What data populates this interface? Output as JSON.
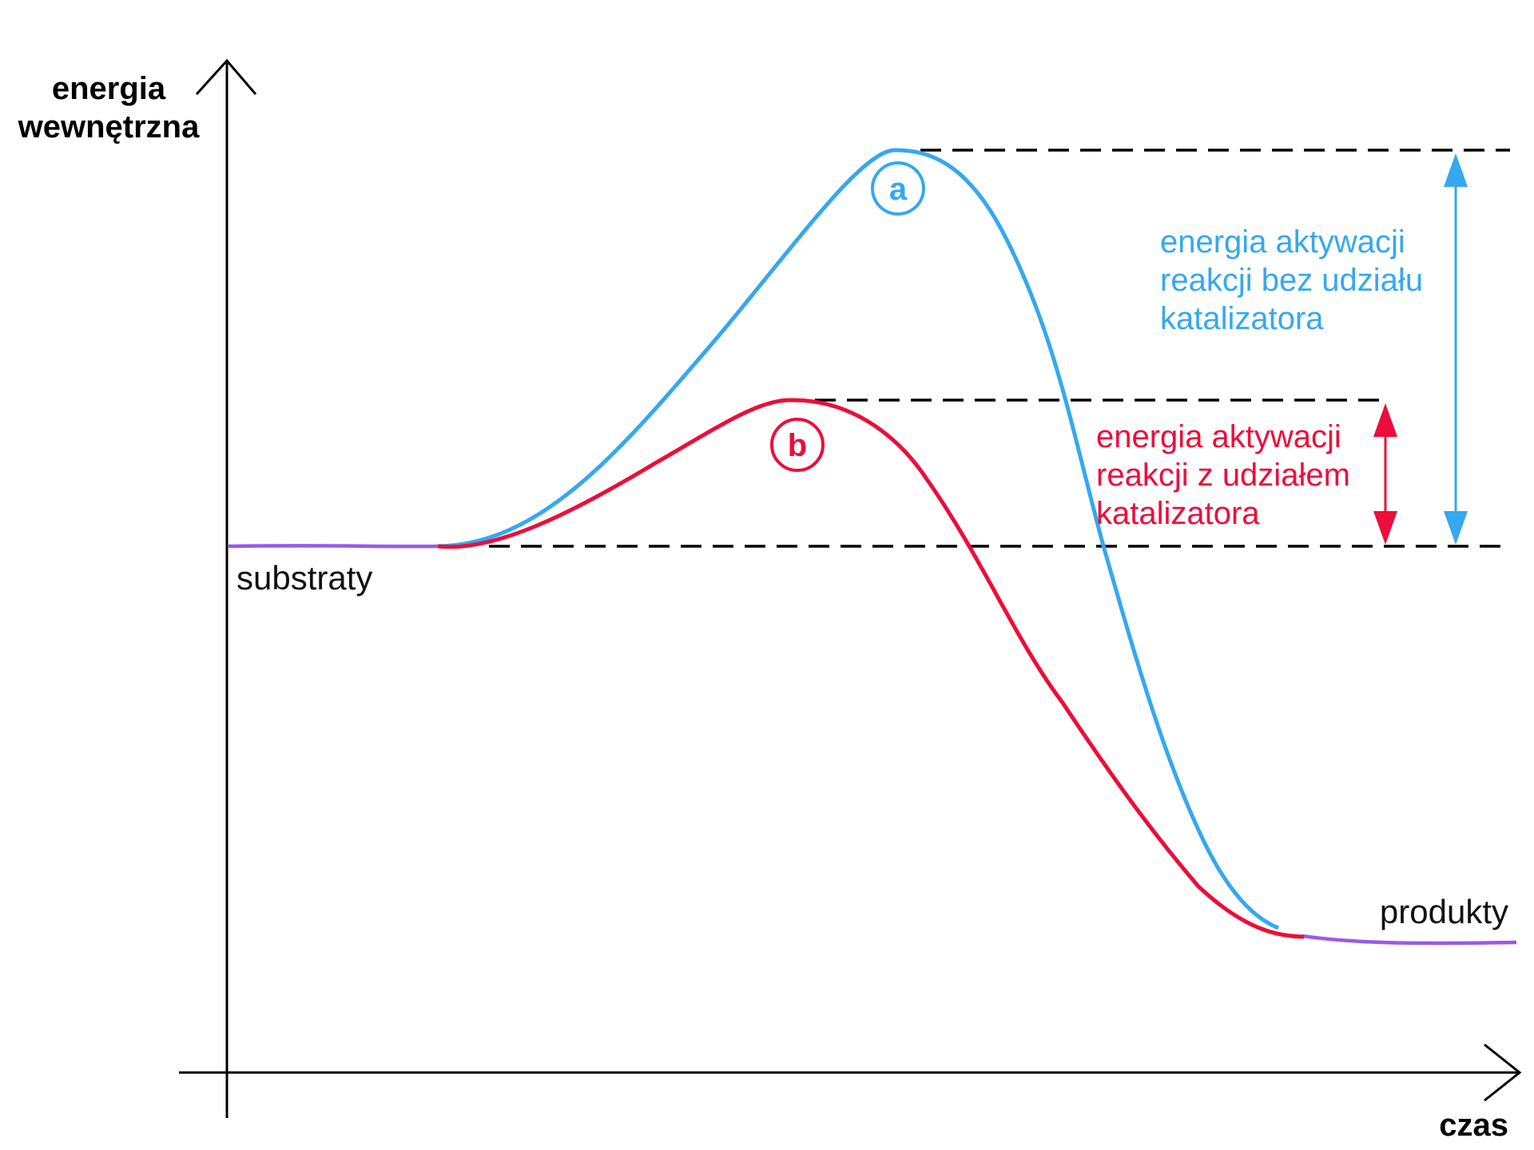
{
  "axes": {
    "y_label_line1": "energia",
    "y_label_line2": "wewnętrzna",
    "x_label": "czas"
  },
  "levels": {
    "reactants": "substraty",
    "products": "produkty"
  },
  "curves": {
    "uncatalyzed": {
      "marker": "a",
      "color": "#35a8ef"
    },
    "catalyzed": {
      "marker": "b",
      "color": "#ee0c3a"
    },
    "baseline_color": "#9b59e8"
  },
  "annotations": {
    "uncatalyzed": {
      "line1": "energia aktywacji",
      "line2": "reakcji bez udziału",
      "line3": "katalizatora",
      "color": "#35a8ef"
    },
    "catalyzed": {
      "line1": "energia aktywacji",
      "line2": "reakcji z udziałem",
      "line3": "katalizatora",
      "color": "#ee0c3a"
    }
  }
}
